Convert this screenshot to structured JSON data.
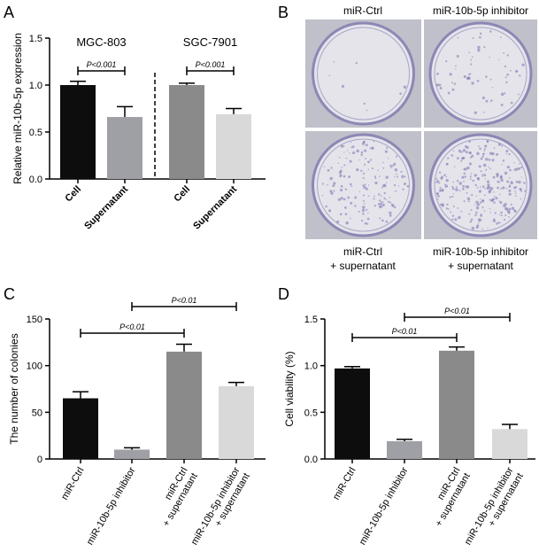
{
  "colors": {
    "black": "#0d0d0d",
    "gray": "#8a8a8a",
    "light_gray": "#9f9fa6",
    "lightest": "#d9d9d9",
    "plate_bg": "#bfc0c9",
    "plate_inner": "#e4e4ea",
    "stain": "#7a6fb0"
  },
  "chart_data": [
    {
      "panel": "A",
      "type": "bar",
      "ylabel": "Relative miR-10b-5p expression",
      "ylim": [
        0,
        1.5
      ],
      "yticks": [
        "0.0",
        "0.5",
        "1.0",
        "1.5"
      ],
      "groups": [
        {
          "name": "MGC-803",
          "categories": [
            "Cell",
            "Supernatant"
          ],
          "values": [
            1.0,
            0.66
          ],
          "errors": [
            0.04,
            0.11
          ],
          "colors": [
            "#0d0d0d",
            "#9f9fa6"
          ],
          "significance": "P<0.001"
        },
        {
          "name": "SGC-7901",
          "categories": [
            "Cell",
            "Supernatant"
          ],
          "values": [
            1.0,
            0.69
          ],
          "errors": [
            0.02,
            0.06
          ],
          "colors": [
            "#8a8a8a",
            "#d9d9d9"
          ],
          "significance": "P<0.001"
        }
      ]
    },
    {
      "panel": "C",
      "type": "bar",
      "ylabel": "The number of colonies",
      "ylim": [
        0,
        150
      ],
      "yticks": [
        "0",
        "50",
        "100",
        "150"
      ],
      "categories": [
        "miR-Ctrl",
        "miR-10b-5p inhibitor",
        "miR-Ctrl\n+ supernatant",
        "miR-10b-5p inhibitor\n+ supernatant"
      ],
      "values": [
        65,
        10,
        115,
        78
      ],
      "errors": [
        7,
        2,
        8,
        4
      ],
      "colors": [
        "#0d0d0d",
        "#9f9fa6",
        "#8a8a8a",
        "#d9d9d9"
      ],
      "comparisons": [
        {
          "from": 0,
          "to": 2,
          "label": "P<0.01"
        },
        {
          "from": 1,
          "to": 3,
          "label": "P<0.01"
        }
      ]
    },
    {
      "panel": "D",
      "type": "bar",
      "ylabel": "Cell viability (%)",
      "ylim": [
        0,
        1.5
      ],
      "yticks": [
        "0.0",
        "0.5",
        "1.0",
        "1.5"
      ],
      "categories": [
        "miR-Ctrl",
        "miR-10b-5p inhibitor",
        "miR-Ctrl\n+ supernatant",
        "miR-10b-5p inhibitor\n+ supernatant"
      ],
      "values": [
        0.97,
        0.19,
        1.16,
        0.32
      ],
      "errors": [
        0.02,
        0.02,
        0.04,
        0.05
      ],
      "colors": [
        "#0d0d0d",
        "#9f9fa6",
        "#8a8a8a",
        "#d9d9d9"
      ],
      "comparisons": [
        {
          "from": 0,
          "to": 2,
          "label": "P<0.01"
        },
        {
          "from": 1,
          "to": 3,
          "label": "P<0.01"
        }
      ]
    }
  ],
  "panel_b": {
    "top_labels": [
      "miR-Ctrl",
      "miR-10b-5p inhibitor"
    ],
    "bottom_labels": [
      "miR-Ctrl\n+ supernatant",
      "miR-10b-5p inhibitor\n+ supernatant"
    ],
    "stain_density": [
      1,
      0,
      3,
      2
    ]
  },
  "panel_letters": [
    "A",
    "B",
    "C",
    "D"
  ]
}
